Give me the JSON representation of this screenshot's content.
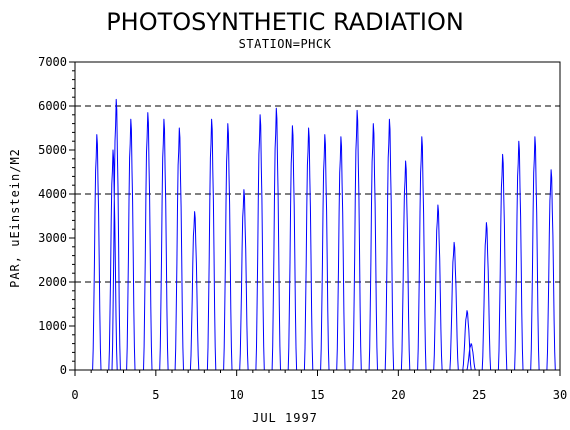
{
  "chart_data": {
    "type": "line",
    "title": "PHOTOSYNTHETIC RADIATION",
    "subtitle": "STATION=PHCK",
    "xlabel": "JUL 1997",
    "ylabel": "PAR, uEinstein/M2",
    "xlim": [
      0,
      30
    ],
    "ylim": [
      0,
      7000
    ],
    "x_ticks": [
      "0",
      "5",
      "10",
      "15",
      "20",
      "25",
      "30"
    ],
    "y_ticks": [
      "0",
      "1000",
      "2000",
      "3000",
      "4000",
      "5000",
      "6000",
      "7000"
    ],
    "grid": "dashed horizontal reference lines at 2000, 4000, 6000",
    "legend": "none",
    "series_color": "#0000ff",
    "series": [
      {
        "daily_peaks": [
          {
            "day": 1.35,
            "peak": 5350
          },
          {
            "day": 2.35,
            "peak": 5000
          },
          {
            "day": 2.55,
            "peak": 6150
          },
          {
            "day": 3.45,
            "peak": 5700
          },
          {
            "day": 4.5,
            "peak": 5850
          },
          {
            "day": 5.5,
            "peak": 5700
          },
          {
            "day": 6.45,
            "peak": 5500
          },
          {
            "day": 7.4,
            "peak": 3600
          },
          {
            "day": 8.45,
            "peak": 5700
          },
          {
            "day": 9.45,
            "peak": 5600
          },
          {
            "day": 10.45,
            "peak": 4100
          },
          {
            "day": 11.45,
            "peak": 5800
          },
          {
            "day": 12.45,
            "peak": 5950
          },
          {
            "day": 13.45,
            "peak": 5550
          },
          {
            "day": 14.45,
            "peak": 5500
          },
          {
            "day": 15.45,
            "peak": 5350
          },
          {
            "day": 16.45,
            "peak": 5300
          },
          {
            "day": 17.45,
            "peak": 5900
          },
          {
            "day": 18.45,
            "peak": 5600
          },
          {
            "day": 19.45,
            "peak": 5700
          },
          {
            "day": 20.45,
            "peak": 4750
          },
          {
            "day": 21.45,
            "peak": 5300
          },
          {
            "day": 22.45,
            "peak": 3750
          },
          {
            "day": 23.45,
            "peak": 2900
          },
          {
            "day": 24.25,
            "peak": 1350
          },
          {
            "day": 24.5,
            "peak": 600
          },
          {
            "day": 25.45,
            "peak": 3350
          },
          {
            "day": 26.45,
            "peak": 4900
          },
          {
            "day": 27.45,
            "peak": 5200
          },
          {
            "day": 28.45,
            "peak": 5300
          },
          {
            "day": 29.45,
            "peak": 4550
          }
        ]
      }
    ]
  }
}
